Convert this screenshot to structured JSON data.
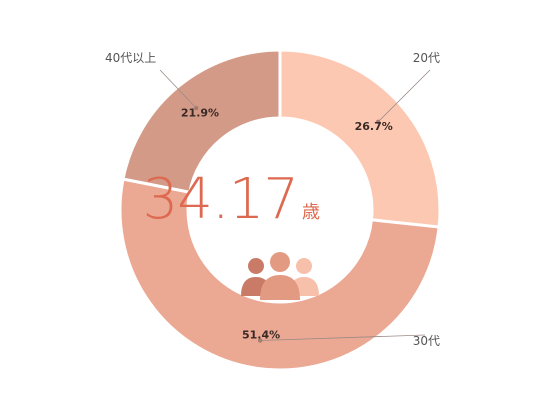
{
  "chart_data": {
    "type": "pie",
    "donut": true,
    "categories": [
      "20代",
      "30代",
      "40代以上"
    ],
    "values": [
      26.7,
      51.4,
      21.9
    ],
    "value_labels": [
      "26.7%",
      "51.4%",
      "21.9%"
    ],
    "colors": [
      "#fdc8b2",
      "#eba893",
      "#d49a88"
    ],
    "start": "12 o'clock",
    "direction": "clockwise"
  },
  "center": {
    "value": "34.17",
    "unit": "歳",
    "icon": "people-group-icon",
    "icon_colors": [
      "#c97b68",
      "#e39a82",
      "#f7c0aa"
    ]
  }
}
